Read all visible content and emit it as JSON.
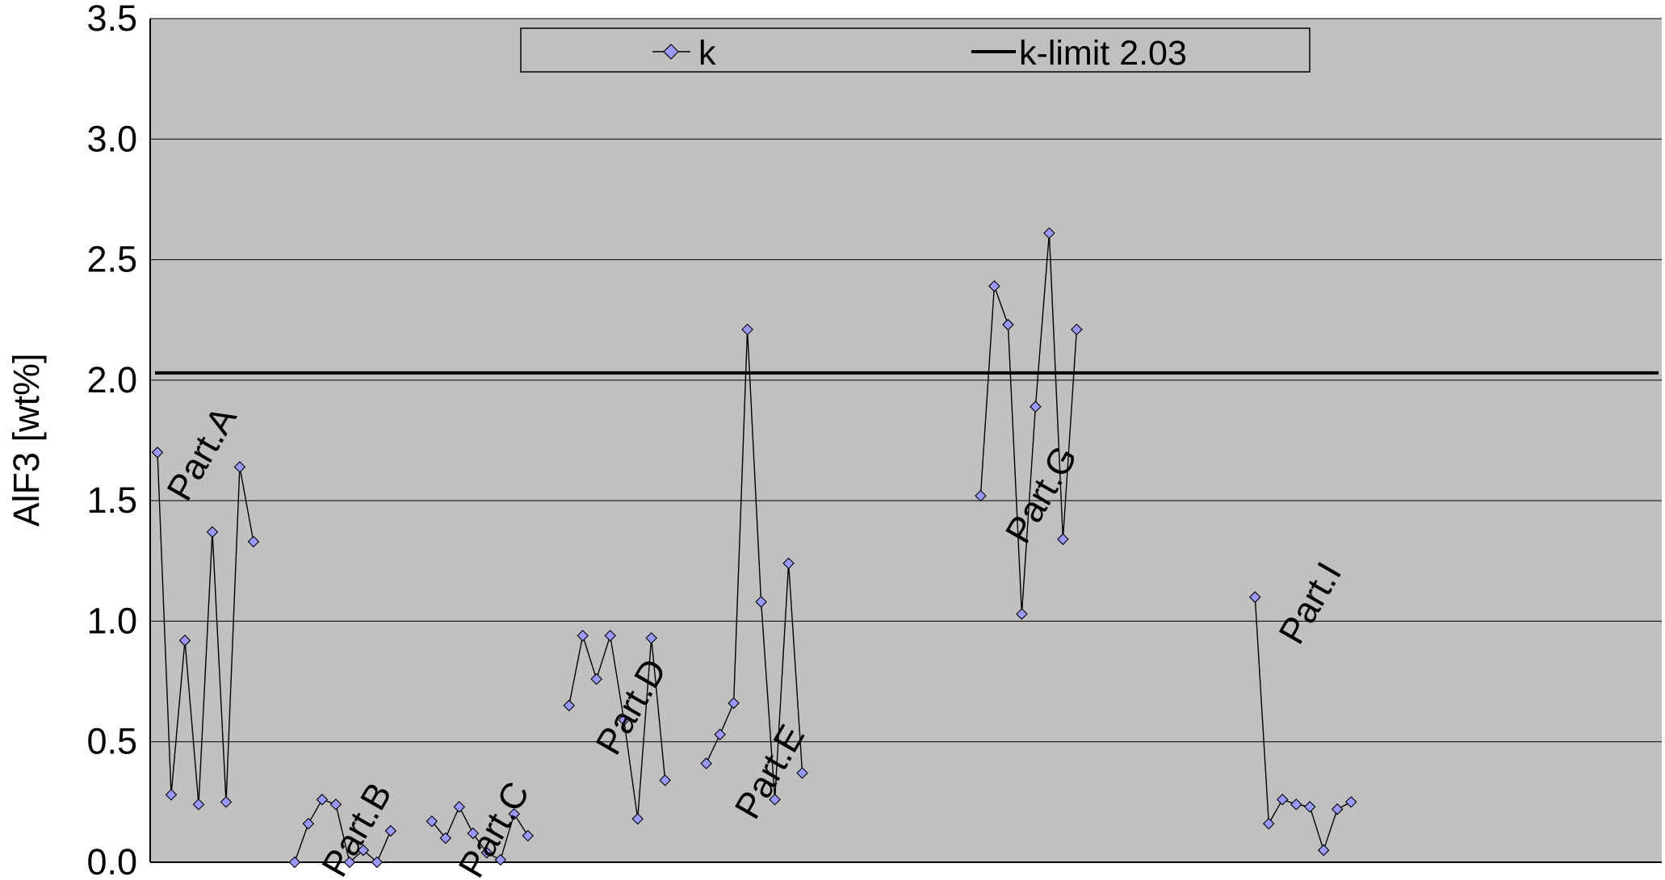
{
  "chart_data": {
    "type": "line",
    "ylabel": "AlF3 [wt%]",
    "ylim": [
      0,
      3.5
    ],
    "yticks": [
      "0.0",
      "0.5",
      "1.0",
      "1.5",
      "2.0",
      "2.5",
      "3.0",
      "3.5"
    ],
    "y_tick_values": [
      0,
      0.5,
      1.0,
      1.5,
      2.0,
      2.5,
      3.0,
      3.5
    ],
    "x_domain": [
      0,
      109
    ],
    "grid": true,
    "background_color": "#c0c0c0",
    "legend_position": "top-center",
    "series": [
      {
        "name": "k",
        "color": "#000000",
        "marker_fill": "#9999ff",
        "marker": "diamond",
        "segments": [
          [
            [
              0,
              1.7
            ],
            [
              1,
              0.28
            ],
            [
              2,
              0.92
            ],
            [
              3,
              0.24
            ],
            [
              4,
              1.37
            ],
            [
              5,
              0.25
            ],
            [
              6,
              1.64
            ],
            [
              7,
              1.33
            ]
          ],
          [
            [
              10,
              0.0
            ],
            [
              11,
              0.16
            ],
            [
              12,
              0.26
            ],
            [
              13,
              0.24
            ],
            [
              14,
              0.0
            ],
            [
              15,
              0.05
            ],
            [
              16,
              0.0
            ],
            [
              17,
              0.13
            ]
          ],
          [
            [
              20,
              0.17
            ],
            [
              21,
              0.1
            ],
            [
              22,
              0.23
            ],
            [
              23,
              0.12
            ],
            [
              24,
              0.04
            ],
            [
              25,
              0.01
            ],
            [
              26,
              0.2
            ],
            [
              27,
              0.11
            ]
          ],
          [
            [
              30,
              0.65
            ],
            [
              31,
              0.94
            ],
            [
              32,
              0.76
            ],
            [
              33,
              0.94
            ],
            [
              34,
              0.59
            ],
            [
              35,
              0.18
            ],
            [
              36,
              0.93
            ],
            [
              37,
              0.34
            ]
          ],
          [
            [
              40,
              0.41
            ],
            [
              41,
              0.53
            ],
            [
              42,
              0.66
            ],
            [
              43,
              2.21
            ],
            [
              44,
              1.08
            ],
            [
              45,
              0.26
            ],
            [
              46,
              1.24
            ],
            [
              47,
              0.37
            ]
          ],
          [
            [
              60,
              1.52
            ],
            [
              61,
              2.39
            ],
            [
              62,
              2.23
            ],
            [
              63,
              1.03
            ],
            [
              64,
              1.89
            ],
            [
              65,
              2.61
            ],
            [
              66,
              1.34
            ],
            [
              67,
              2.21
            ]
          ],
          [
            [
              80,
              1.1
            ],
            [
              81,
              0.16
            ],
            [
              82,
              0.26
            ],
            [
              83,
              0.24
            ],
            [
              84,
              0.23
            ],
            [
              85,
              0.05
            ],
            [
              86,
              0.22
            ],
            [
              87,
              0.25
            ]
          ]
        ]
      },
      {
        "name": "k-limit 2.03",
        "color": "#000000",
        "value": 2.03
      }
    ],
    "annotations": [
      {
        "text": "Part.A",
        "x": 4.0,
        "y": 1.67
      },
      {
        "text": "Part.B",
        "x": 15.3,
        "y": 0.11
      },
      {
        "text": "Part.C",
        "x": 25.3,
        "y": 0.11
      },
      {
        "text": "Part.D",
        "x": 35.3,
        "y": 0.62
      },
      {
        "text": "Part.E",
        "x": 45.4,
        "y": 0.35
      },
      {
        "text": "Part.G",
        "x": 65.2,
        "y": 1.5
      },
      {
        "text": "Part.I",
        "x": 84.8,
        "y": 1.05
      }
    ]
  }
}
